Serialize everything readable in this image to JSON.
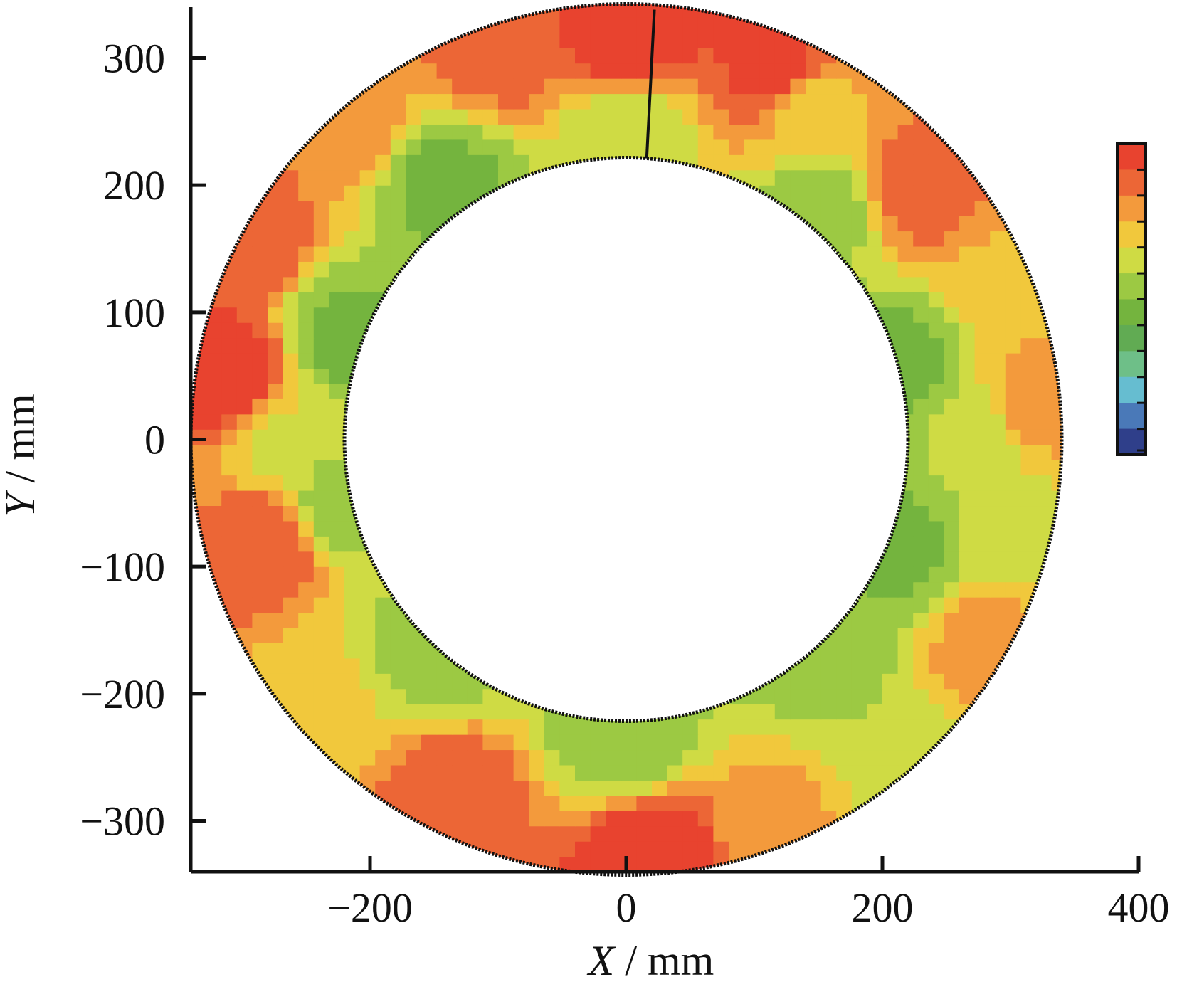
{
  "chart_data": {
    "type": "heatmap",
    "title": "",
    "xlabel": {
      "var": "X",
      "unit": " / mm"
    },
    "ylabel": {
      "var": "Y",
      "unit": " / mm"
    },
    "xlim": [
      -340,
      400
    ],
    "ylim": [
      -340,
      340
    ],
    "x_ticks": [
      {
        "value": -200,
        "label": "−200"
      },
      {
        "value": 0,
        "label": "0"
      },
      {
        "value": 200,
        "label": "200"
      },
      {
        "value": 400,
        "label": "400"
      }
    ],
    "y_ticks": [
      {
        "value": 300,
        "label": "300"
      },
      {
        "value": 200,
        "label": "200"
      },
      {
        "value": 100,
        "label": "100"
      },
      {
        "value": 0,
        "label": "0"
      },
      {
        "value": -100,
        "label": "−100"
      },
      {
        "value": -200,
        "label": "−200"
      },
      {
        "value": -300,
        "label": "−300"
      }
    ],
    "annulus": {
      "center": [
        0,
        0
      ],
      "inner_radius": 220,
      "outer_radius": 340
    },
    "seam_line": [
      [
        22,
        338
      ],
      [
        16,
        221
      ]
    ],
    "grid": false,
    "legend": "colorbar-right",
    "colorbar_levels": [
      "#e8432f",
      "#ec6636",
      "#f39a3c",
      "#f1c83c",
      "#cfdb44",
      "#9cc943",
      "#74b43e",
      "#61ab53",
      "#6ebf88",
      "#66bdd0",
      "#4a79b8",
      "#2f3f8a"
    ],
    "color_scale": [
      "#e8432f",
      "#ec6636",
      "#f39a3c",
      "#f1c83c",
      "#cfdb44",
      "#9cc943",
      "#74b43e"
    ],
    "field_samples": [
      {
        "x": 0,
        "y": 320,
        "level": 0.0
      },
      {
        "x": 120,
        "y": 290,
        "level": 0.05
      },
      {
        "x": 230,
        "y": 200,
        "level": 0.2
      },
      {
        "x": 300,
        "y": 120,
        "level": 0.45
      },
      {
        "x": 320,
        "y": 30,
        "level": 0.35
      },
      {
        "x": 320,
        "y": -80,
        "level": 0.6
      },
      {
        "x": 290,
        "y": -170,
        "level": 0.3
      },
      {
        "x": 220,
        "y": -250,
        "level": 0.7
      },
      {
        "x": 120,
        "y": -300,
        "level": 0.4
      },
      {
        "x": 20,
        "y": -325,
        "level": 0.0
      },
      {
        "x": -140,
        "y": -280,
        "level": 0.15
      },
      {
        "x": -230,
        "y": -210,
        "level": 0.55
      },
      {
        "x": -280,
        "y": -80,
        "level": 0.15
      },
      {
        "x": -310,
        "y": 50,
        "level": 0.0
      },
      {
        "x": -300,
        "y": 160,
        "level": 0.15
      },
      {
        "x": -220,
        "y": 250,
        "level": 0.35
      },
      {
        "x": -100,
        "y": 310,
        "level": 0.2
      },
      {
        "x": 0,
        "y": 240,
        "level": 0.7
      },
      {
        "x": 150,
        "y": 180,
        "level": 0.8
      },
      {
        "x": 215,
        "y": 60,
        "level": 0.9
      },
      {
        "x": 210,
        "y": -80,
        "level": 0.9
      },
      {
        "x": 150,
        "y": -170,
        "level": 0.8
      },
      {
        "x": 0,
        "y": -235,
        "level": 0.85
      },
      {
        "x": -150,
        "y": -170,
        "level": 0.8
      },
      {
        "x": -225,
        "y": -50,
        "level": 0.8
      },
      {
        "x": -220,
        "y": 80,
        "level": 0.9
      },
      {
        "x": -140,
        "y": 200,
        "level": 0.9
      },
      {
        "x": 140,
        "y": 265,
        "level": 0.5
      },
      {
        "x": 270,
        "y": 0,
        "level": 0.7
      },
      {
        "x": -270,
        "y": 0,
        "level": 0.6
      }
    ]
  }
}
